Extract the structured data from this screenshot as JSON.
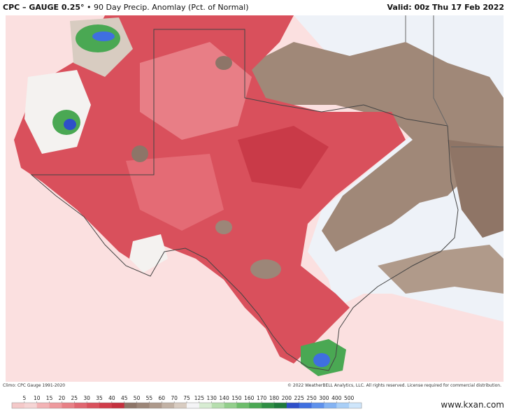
{
  "header": {
    "title": "CPC – GAUGE 0.25°",
    "subtitle": "• 90 Day Precip. Anomlay (Pct. of Normal)",
    "valid": "Valid: 00z Thu 17 Feb 2022"
  },
  "footer": {
    "climo": "Climo: CPC Gauge 1991-2020",
    "copyright": "© 2022 WeatherBELL Analytics, LLC. All rights reserved. License required for commercial distribution.",
    "watermark": "www.kxan.com"
  },
  "legend": {
    "ticks": [
      5,
      10,
      15,
      20,
      25,
      30,
      35,
      40,
      45,
      50,
      55,
      60,
      70,
      75,
      125,
      130,
      140,
      150,
      160,
      170,
      180,
      200,
      225,
      250,
      300,
      400,
      500
    ],
    "colors": [
      "#f4c9c9",
      "#f5d4d4",
      "#f3b3b5",
      "#ee9a9e",
      "#e88086",
      "#e06670",
      "#d9515c",
      "#d03c4a",
      "#c4303e",
      "#8d7568",
      "#9c8678",
      "#ad998b",
      "#c2b2a5",
      "#d8ccc1",
      "#f4f4f6",
      "#d7ecd2",
      "#b6deae",
      "#93cf8c",
      "#6dbd6b",
      "#4aa853",
      "#2f8f44",
      "#1e7a3c",
      "#2e4fc9",
      "#3f6fe0",
      "#5e91ec",
      "#84b3f3",
      "#a9cff7",
      "#cfe6fb"
    ]
  }
}
